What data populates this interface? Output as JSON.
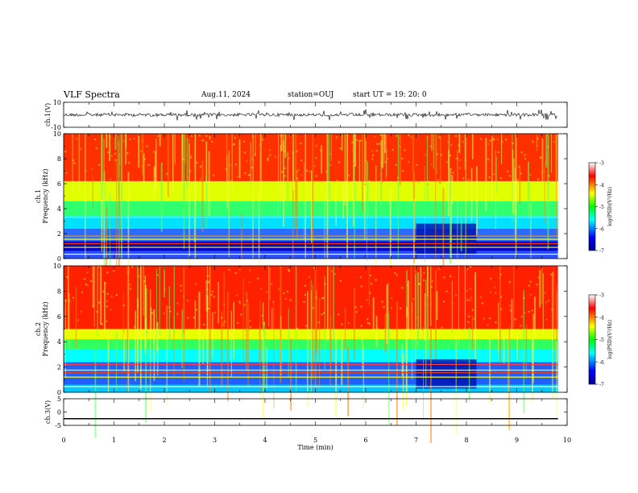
{
  "header": {
    "title": "VLF Spectra",
    "date": "Aug.11, 2024",
    "station": "station=OUJ",
    "start_ut": "start  UT =   19: 20: 0"
  },
  "chart_data": [
    {
      "id": "ch1-waveform",
      "type": "line",
      "ylabel": "ch.1(V)",
      "ylim": [
        -10,
        10
      ],
      "yticks": [
        "10",
        "-10"
      ],
      "xlim": [
        0,
        10
      ],
      "baseline": 0,
      "color": "#000000"
    },
    {
      "id": "ch1-spectrogram",
      "type": "heatmap",
      "ylabel": "ch.1\nFrequency (kHz)",
      "ylabel_lines": [
        "ch.1",
        "Frequency (kHz)"
      ],
      "ylim": [
        0,
        10
      ],
      "yticks": [
        "0",
        "2",
        "4",
        "6",
        "8",
        "10"
      ],
      "xlim": [
        0,
        10
      ],
      "data_end_min": 9.82,
      "colorbar": {
        "label": "log(PSD)(V²/Hz)",
        "ticks": [
          "-3",
          "-4",
          "-5",
          "-6",
          "-7"
        ],
        "range": [
          -7,
          -3
        ]
      }
    },
    {
      "id": "ch2-spectrogram",
      "type": "heatmap",
      "ylabel": "ch.2\nFrequency (kHz)",
      "ylabel_lines": [
        "ch.2",
        "Frequency (kHz)"
      ],
      "ylim": [
        0,
        10
      ],
      "yticks": [
        "0",
        "2",
        "4",
        "6",
        "8",
        "10"
      ],
      "xlim": [
        0,
        10
      ],
      "data_end_min": 9.82,
      "colorbar": {
        "label": "log(PSD)(V²/Hz)",
        "ticks": [
          "-3",
          "-4",
          "-5",
          "-6",
          "-7"
        ],
        "range": [
          -7,
          -3
        ]
      }
    },
    {
      "id": "ch3-waveform",
      "type": "line",
      "ylabel": "ch.3(V)",
      "ylim": [
        -5,
        5
      ],
      "yticks": [
        "5",
        "0",
        "-5"
      ],
      "xlim": [
        0,
        10
      ],
      "constant_value": -2.5,
      "color": "#000000"
    }
  ],
  "xaxis": {
    "label": "Time  (min)",
    "ticks": [
      "0",
      "1",
      "2",
      "3",
      "4",
      "5",
      "6",
      "7",
      "8",
      "9",
      "10"
    ]
  },
  "colors": {
    "colormap": [
      "#00008f",
      "#0000ff",
      "#00ffff",
      "#00ff00",
      "#ffff00",
      "#ff0000",
      "#ffffff"
    ]
  }
}
